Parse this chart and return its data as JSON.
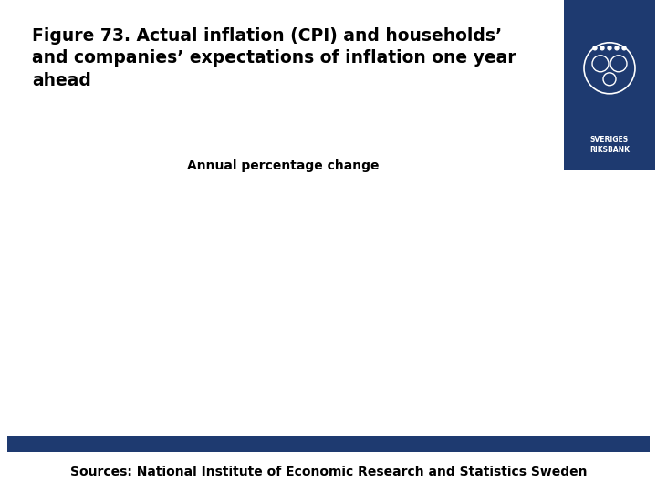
{
  "title_line1": "Figure 73. Actual inflation (CPI) and households’",
  "title_line2": "and companies’ expectations of inflation one year",
  "title_line3": "ahead",
  "subtitle": "Annual percentage change",
  "source_text": "Sources: National Institute of Economic Research and Statistics Sweden",
  "background_color": "#ffffff",
  "title_color": "#000000",
  "subtitle_color": "#000000",
  "source_color": "#000000",
  "bar_color": "#1e3a70",
  "logo_bg_color": "#1e3a70",
  "title_fontsize": 13.5,
  "subtitle_fontsize": 10,
  "source_fontsize": 10
}
